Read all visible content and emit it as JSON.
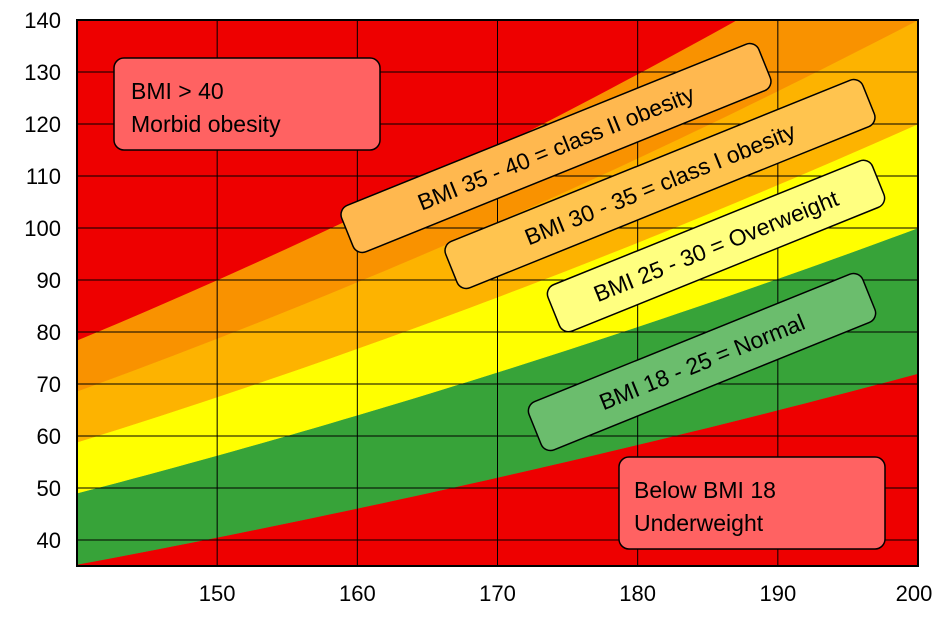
{
  "chart_data": {
    "type": "area",
    "xlim": [
      140,
      200
    ],
    "ylim": [
      35,
      140
    ],
    "x_ticks": [
      150,
      160,
      170,
      180,
      190,
      200
    ],
    "y_ticks": [
      40,
      50,
      60,
      70,
      80,
      90,
      100,
      110,
      120,
      130,
      140
    ],
    "grid": true,
    "bands": [
      {
        "bmi_min": 0,
        "bmi_max": 18,
        "color": "#ee0000"
      },
      {
        "bmi_min": 18,
        "bmi_max": 25,
        "color": "#37a339"
      },
      {
        "bmi_min": 25,
        "bmi_max": 30,
        "color": "#ffff00"
      },
      {
        "bmi_min": 30,
        "bmi_max": 35,
        "color": "#fdb300"
      },
      {
        "bmi_min": 35,
        "bmi_max": 40,
        "color": "#f99200"
      },
      {
        "bmi_min": 40,
        "bmi_max": 999,
        "color": "#ee0000"
      }
    ],
    "labels": [
      {
        "id": "morbid",
        "lines": [
          "BMI > 40",
          "Morbid obesity"
        ],
        "fill": "#ff6262",
        "angle": 0
      },
      {
        "id": "class2",
        "lines": [
          "BMI 35 - 40 = class II obesity"
        ],
        "fill": "#ffb84f",
        "angle": -22
      },
      {
        "id": "class1",
        "lines": [
          "BMI 30 - 35 = class I obesity"
        ],
        "fill": "#ffc44f",
        "angle": -22
      },
      {
        "id": "overweight",
        "lines": [
          "BMI 25 - 30 = Overweight"
        ],
        "fill": "#ffff80",
        "angle": -22
      },
      {
        "id": "normal",
        "lines": [
          "BMI 18 - 25 = Normal"
        ],
        "fill": "#6bbd6d",
        "angle": -22
      },
      {
        "id": "underweight",
        "lines": [
          "Below BMI 18",
          "Underweight"
        ],
        "fill": "#ff6262",
        "angle": 0
      }
    ]
  }
}
